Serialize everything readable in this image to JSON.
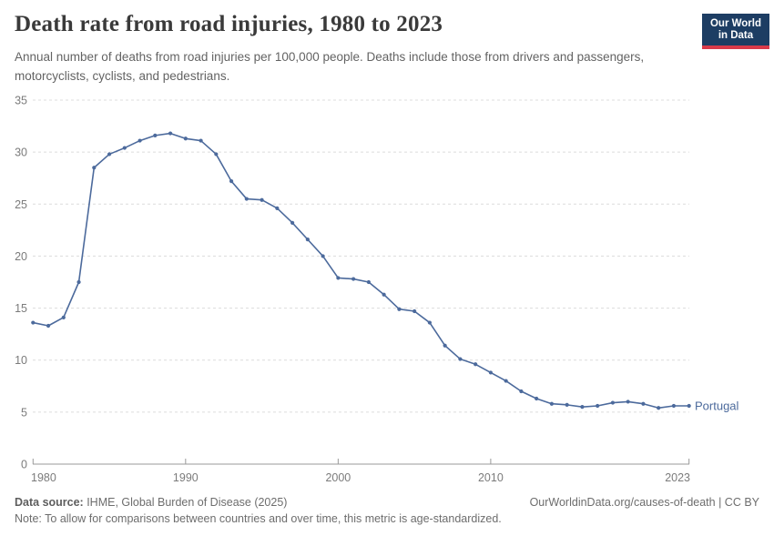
{
  "header": {
    "title": "Death rate from road injuries, 1980 to 2023",
    "subtitle": "Annual number of deaths from road injuries per 100,000 people. Deaths include those from drivers and passengers, motorcyclists, cyclists, and pedestrians."
  },
  "branding": {
    "logo_line1": "Our World",
    "logo_line2": "in Data",
    "logo_bg_color": "#1d3d63",
    "logo_accent_color": "#d93a4a"
  },
  "chart_data": {
    "type": "line",
    "title": "Death rate from road injuries, 1980 to 2023",
    "x": [
      1980,
      1981,
      1982,
      1983,
      1984,
      1985,
      1986,
      1987,
      1988,
      1989,
      1990,
      1991,
      1992,
      1993,
      1994,
      1995,
      1996,
      1997,
      1998,
      1999,
      2000,
      2001,
      2002,
      2003,
      2004,
      2005,
      2006,
      2007,
      2008,
      2009,
      2010,
      2011,
      2012,
      2013,
      2014,
      2015,
      2016,
      2017,
      2018,
      2019,
      2020,
      2021,
      2022,
      2023
    ],
    "series": [
      {
        "name": "Portugal",
        "color": "#4c6a9c",
        "values": [
          13.6,
          13.3,
          14.1,
          17.5,
          28.5,
          29.8,
          30.4,
          31.1,
          31.6,
          31.8,
          31.3,
          31.1,
          29.8,
          27.2,
          25.5,
          25.4,
          24.6,
          23.2,
          21.6,
          20.0,
          17.9,
          17.8,
          17.5,
          16.3,
          14.9,
          14.7,
          13.6,
          11.4,
          10.1,
          9.6,
          8.8,
          8.0,
          7.0,
          6.3,
          5.8,
          5.7,
          5.5,
          5.6,
          5.9,
          6.0,
          5.8,
          5.4,
          5.6,
          5.6
        ]
      }
    ],
    "xlabel": "",
    "ylabel": "",
    "ylim": [
      0,
      35
    ],
    "yticks": [
      0,
      5,
      10,
      15,
      20,
      25,
      30,
      35
    ],
    "xticks": [
      1980,
      1990,
      2000,
      2010,
      2023
    ],
    "grid": true,
    "grid_color": "#dcdcdc",
    "axis_color": "#999999",
    "tick_color": "#7b7b7b",
    "legend": "end-of-line-label"
  },
  "footer": {
    "source_label": "Data source:",
    "source_text": " IHME, Global Burden of Disease (2025)",
    "link_text": "OurWorldinData.org/causes-of-death | CC BY",
    "note_label": "Note:",
    "note_text": " To allow for comparisons between countries and over time, this metric is age-standardized."
  }
}
